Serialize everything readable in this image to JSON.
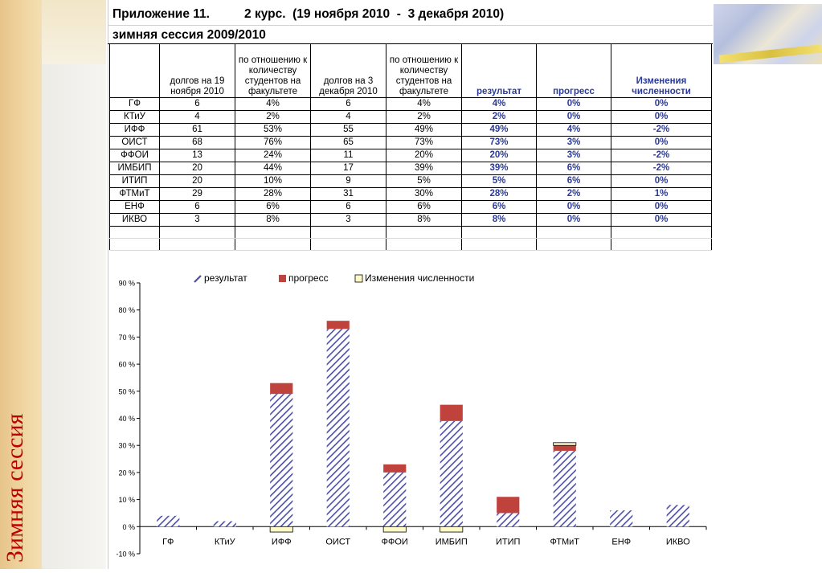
{
  "slide_side_title": "Зимняя сессия",
  "sheet": {
    "title_line1": "Приложение 11.          2 курс.  (19 ноября 2010  -  3 декабря 2010)",
    "title_line2": "зимняя сессия 2009/2010"
  },
  "table": {
    "headers": [
      "",
      "долгов на 19 ноября 2010",
      "по отношению к количеству студентов на факультете",
      "долгов на 3 декабря 2010",
      "по отношению к количеству студентов на факультете",
      "результат",
      "прогресс",
      "Изменения численности"
    ],
    "rows": [
      [
        "ГФ",
        "6",
        "4%",
        "6",
        "4%",
        "4%",
        "0%",
        "0%"
      ],
      [
        "КТиУ",
        "4",
        "2%",
        "4",
        "2%",
        "2%",
        "0%",
        "0%"
      ],
      [
        "ИФФ",
        "61",
        "53%",
        "55",
        "49%",
        "49%",
        "4%",
        "-2%"
      ],
      [
        "ОИСТ",
        "68",
        "76%",
        "65",
        "73%",
        "73%",
        "3%",
        "0%"
      ],
      [
        "ФФОИ",
        "13",
        "24%",
        "11",
        "20%",
        "20%",
        "3%",
        "-2%"
      ],
      [
        "ИМБИП",
        "20",
        "44%",
        "17",
        "39%",
        "39%",
        "6%",
        "-2%"
      ],
      [
        "ИТИП",
        "20",
        "10%",
        "9",
        "5%",
        "5%",
        "6%",
        "0%"
      ],
      [
        "ФТМиТ",
        "29",
        "28%",
        "31",
        "30%",
        "28%",
        "2%",
        "1%"
      ],
      [
        "ЕНФ",
        "6",
        "6%",
        "6",
        "6%",
        "6%",
        "0%",
        "0%"
      ],
      [
        "ИКВО",
        "3",
        "8%",
        "3",
        "8%",
        "8%",
        "0%",
        "0%"
      ]
    ]
  },
  "colors": {
    "result_hatch": "#4b4fa8",
    "progress": "#c0423d",
    "change": "#fffbc8",
    "blue_text": "#2b3a96",
    "side_title": "#c00000"
  },
  "chart_data": {
    "type": "bar",
    "stacked": true,
    "categories": [
      "ГФ",
      "КТиУ",
      "ИФФ",
      "ОИСТ",
      "ФФОИ",
      "ИМБИП",
      "ИТИП",
      "ФТМиТ",
      "ЕНФ",
      "ИКВО"
    ],
    "series": [
      {
        "name": "результат",
        "values": [
          4,
          2,
          49,
          73,
          20,
          39,
          5,
          28,
          6,
          8
        ]
      },
      {
        "name": "прогресс",
        "values": [
          0,
          0,
          4,
          3,
          3,
          6,
          6,
          2,
          0,
          0
        ]
      },
      {
        "name": "Изменения численности",
        "values": [
          0,
          0,
          -2,
          0,
          -2,
          -2,
          0,
          1,
          0,
          0
        ]
      }
    ],
    "ylim": [
      -10,
      90
    ],
    "yticks": [
      "90 %",
      "80 %",
      "70 %",
      "60 %",
      "50 %",
      "40 %",
      "30 %",
      "20 %",
      "10 %",
      "0 %",
      "-10 %"
    ],
    "ytick_values": [
      90,
      80,
      70,
      60,
      50,
      40,
      30,
      20,
      10,
      0,
      -10
    ],
    "legend_position": "top",
    "grid": false
  }
}
